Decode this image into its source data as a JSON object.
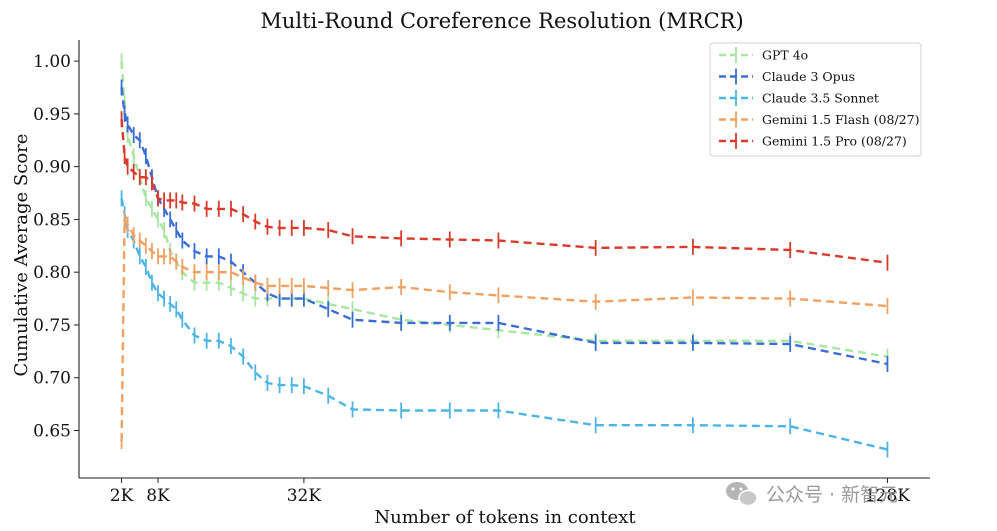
{
  "chart_data": {
    "type": "line",
    "title": "Multi-Round Coreference Resolution (MRCR)",
    "xlabel": "Number of tokens in context",
    "ylabel": "Cumulative Average Score",
    "xlim": [
      -5,
      135
    ],
    "ylim": [
      0.605,
      1.02
    ],
    "x_ticks": [
      2,
      8,
      32,
      128
    ],
    "x_tick_labels": [
      "2K",
      "8K",
      "32K",
      "128K"
    ],
    "y_ticks": [
      0.65,
      0.7,
      0.75,
      0.8,
      0.85,
      0.9,
      0.95,
      1.0
    ],
    "y_tick_labels": [
      "0.65",
      "0.70",
      "0.75",
      "0.80",
      "0.85",
      "0.90",
      "0.95",
      "1.00"
    ],
    "legend_position": "top-right",
    "grid": false,
    "series": [
      {
        "name": "GPT 4o",
        "color": "#a8e6a1",
        "x": [
          2,
          2.5,
          3,
          4,
          5,
          6,
          7,
          8,
          9,
          10,
          11,
          12,
          14,
          16,
          18,
          20,
          22,
          24,
          26,
          28,
          30,
          32,
          36,
          40,
          48,
          56,
          64,
          80,
          96,
          112,
          128
        ],
        "y": [
          1.0,
          0.96,
          0.93,
          0.91,
          0.89,
          0.87,
          0.86,
          0.85,
          0.84,
          0.82,
          0.81,
          0.8,
          0.79,
          0.79,
          0.79,
          0.785,
          0.78,
          0.775,
          0.775,
          0.775,
          0.775,
          0.775,
          0.77,
          0.765,
          0.755,
          0.75,
          0.745,
          0.735,
          0.735,
          0.735,
          0.72
        ]
      },
      {
        "name": "Claude 3 Opus",
        "color": "#3a6ed6",
        "x": [
          2,
          2.5,
          3,
          4,
          5,
          6,
          7,
          8,
          9,
          10,
          11,
          12,
          14,
          16,
          18,
          20,
          22,
          24,
          26,
          28,
          30,
          32,
          36,
          40,
          48,
          56,
          64,
          80,
          96,
          112,
          128
        ],
        "y": [
          0.975,
          0.95,
          0.94,
          0.93,
          0.925,
          0.91,
          0.89,
          0.87,
          0.86,
          0.85,
          0.84,
          0.83,
          0.82,
          0.815,
          0.815,
          0.81,
          0.8,
          0.79,
          0.78,
          0.775,
          0.775,
          0.775,
          0.765,
          0.755,
          0.752,
          0.752,
          0.752,
          0.733,
          0.733,
          0.732,
          0.713
        ]
      },
      {
        "name": "Claude 3.5 Sonnet",
        "color": "#4cb5e6",
        "x": [
          2,
          2.5,
          3,
          4,
          5,
          6,
          7,
          8,
          9,
          10,
          11,
          12,
          14,
          16,
          18,
          20,
          22,
          24,
          26,
          28,
          30,
          32,
          36,
          40,
          48,
          56,
          64,
          80,
          96,
          112,
          128
        ],
        "y": [
          0.87,
          0.855,
          0.84,
          0.83,
          0.815,
          0.805,
          0.79,
          0.78,
          0.775,
          0.77,
          0.765,
          0.755,
          0.74,
          0.735,
          0.735,
          0.73,
          0.72,
          0.705,
          0.695,
          0.693,
          0.693,
          0.692,
          0.683,
          0.67,
          0.669,
          0.669,
          0.669,
          0.655,
          0.655,
          0.654,
          0.632
        ]
      },
      {
        "name": "Gemini 1.5 Flash (08/27)",
        "color": "#f0a060",
        "x": [
          2,
          2.5,
          3,
          4,
          5,
          6,
          7,
          8,
          9,
          10,
          11,
          12,
          14,
          16,
          18,
          20,
          22,
          24,
          26,
          28,
          30,
          32,
          36,
          40,
          48,
          56,
          64,
          80,
          96,
          112,
          128
        ],
        "y": [
          0.64,
          0.85,
          0.845,
          0.835,
          0.83,
          0.825,
          0.82,
          0.815,
          0.815,
          0.815,
          0.81,
          0.805,
          0.8,
          0.8,
          0.8,
          0.8,
          0.795,
          0.79,
          0.787,
          0.787,
          0.787,
          0.787,
          0.785,
          0.783,
          0.786,
          0.781,
          0.778,
          0.772,
          0.776,
          0.775,
          0.768
        ]
      },
      {
        "name": "Gemini 1.5 Pro (08/27)",
        "color": "#d93a2c",
        "x": [
          2,
          2.5,
          3,
          4,
          5,
          6,
          7,
          8,
          9,
          10,
          11,
          12,
          14,
          16,
          18,
          20,
          22,
          24,
          26,
          28,
          30,
          32,
          36,
          40,
          48,
          56,
          64,
          80,
          96,
          112,
          128
        ],
        "y": [
          0.945,
          0.91,
          0.9,
          0.895,
          0.89,
          0.89,
          0.885,
          0.87,
          0.868,
          0.868,
          0.868,
          0.866,
          0.865,
          0.86,
          0.86,
          0.86,
          0.855,
          0.848,
          0.843,
          0.842,
          0.842,
          0.842,
          0.84,
          0.834,
          0.832,
          0.831,
          0.83,
          0.823,
          0.824,
          0.821,
          0.809
        ]
      }
    ]
  },
  "watermark": {
    "icon": "wechat-icon",
    "text": "公众号 · 新智元"
  }
}
